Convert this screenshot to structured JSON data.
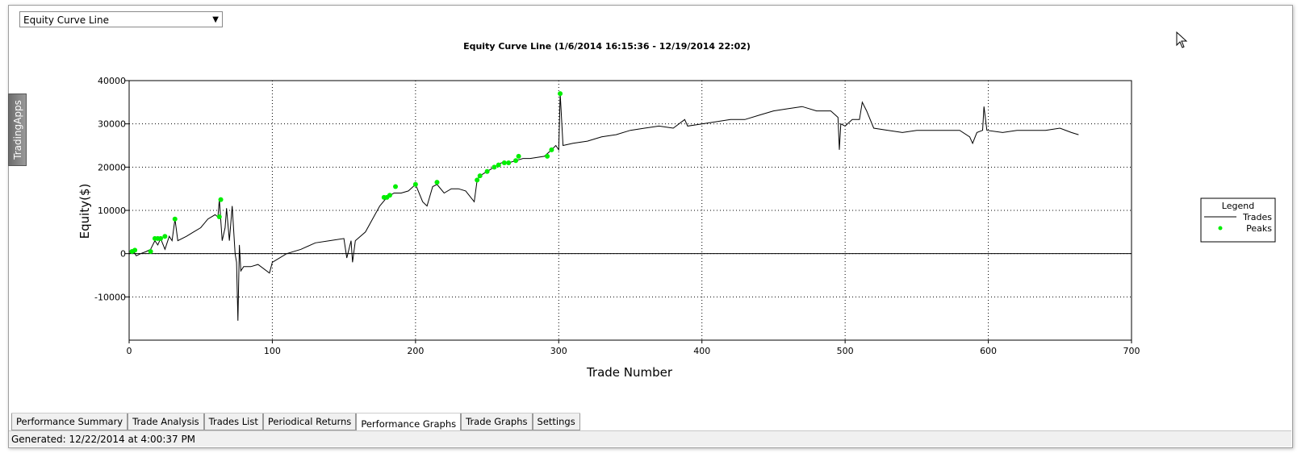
{
  "dropdown": {
    "selected": "Equity Curve Line"
  },
  "side_tab": {
    "label": "TradingApps"
  },
  "tabs": {
    "items": [
      "Performance Summary",
      "Trade Analysis",
      "Trades List",
      "Periodical Returns",
      "Performance Graphs",
      "Trade Graphs",
      "Settings"
    ],
    "active": 4
  },
  "status": {
    "text": "Generated: 12/22/2014 at 4:00:37 PM"
  },
  "chart_data": {
    "type": "line",
    "title": "Equity Curve Line (1/6/2014 16:15:36 - 12/19/2014 22:02)",
    "x_label": "Trade Number",
    "y_label": "Equity($)",
    "legend_title": "Legend",
    "legend_position": "right",
    "grid": true,
    "xlim": [
      0,
      700
    ],
    "xticks": [
      0,
      100,
      200,
      300,
      400,
      500,
      600,
      700
    ],
    "ylim": [
      -20000,
      40000
    ],
    "yticks": [
      -10000,
      0,
      10000,
      20000,
      30000,
      40000
    ],
    "series": [
      {
        "name": "Trades",
        "color": "#000000",
        "type": "line",
        "x": [
          0,
          3,
          5,
          8,
          12,
          15,
          18,
          20,
          22,
          25,
          28,
          30,
          32,
          34,
          40,
          45,
          50,
          55,
          60,
          62,
          63,
          65,
          67,
          68,
          70,
          72,
          74,
          75,
          76,
          77,
          78,
          80,
          85,
          90,
          98,
          100,
          110,
          120,
          130,
          140,
          150,
          152,
          155,
          156,
          158,
          165,
          170,
          175,
          180,
          185,
          190,
          195,
          200,
          205,
          208,
          212,
          215,
          220,
          225,
          230,
          235,
          241,
          243,
          245,
          250,
          255,
          260,
          265,
          270,
          275,
          280,
          290,
          295,
          298,
          300,
          301,
          303,
          310,
          320,
          330,
          340,
          350,
          360,
          370,
          380,
          388,
          390,
          400,
          410,
          420,
          430,
          440,
          450,
          460,
          470,
          480,
          490,
          495,
          496,
          497,
          500,
          505,
          510,
          512,
          515,
          520,
          530,
          540,
          550,
          560,
          570,
          580,
          587,
          589,
          592,
          596,
          597,
          599,
          610,
          620,
          630,
          640,
          650,
          658,
          663
        ],
        "values": [
          0,
          500,
          -500,
          0,
          500,
          1000,
          3000,
          2000,
          3500,
          1000,
          4000,
          3000,
          8000,
          3000,
          4000,
          5000,
          6000,
          8000,
          9000,
          8500,
          12500,
          3000,
          6000,
          10500,
          3000,
          11000,
          0,
          -2000,
          -15500,
          2000,
          -4000,
          -3000,
          -3000,
          -2500,
          -4500,
          -2000,
          0,
          1000,
          2500,
          3000,
          3500,
          -1000,
          3000,
          -2000,
          3000,
          5000,
          8000,
          11000,
          13000,
          14000,
          14000,
          14500,
          16000,
          12000,
          11000,
          15500,
          16000,
          14000,
          15000,
          15000,
          14500,
          12000,
          17000,
          18000,
          19000,
          20000,
          21000,
          21000,
          21500,
          22000,
          22000,
          22500,
          24000,
          25000,
          24000,
          37000,
          25000,
          25500,
          26000,
          27000,
          27500,
          28500,
          29000,
          29500,
          29000,
          31000,
          29500,
          30000,
          30500,
          31000,
          31000,
          32000,
          33000,
          33500,
          34000,
          33000,
          33000,
          31500,
          24000,
          30000,
          29500,
          31000,
          31000,
          35000,
          33000,
          29000,
          28500,
          28000,
          28500,
          28500,
          28500,
          28500,
          27000,
          25500,
          28000,
          28500,
          34000,
          28500,
          28000,
          28500,
          28500,
          28500,
          29000,
          28000,
          27500
        ]
      },
      {
        "name": "Peaks",
        "color": "#00ee00",
        "type": "scatter",
        "x": [
          2,
          4,
          15,
          18,
          20,
          22,
          25,
          32,
          63,
          64,
          178,
          180,
          182,
          186,
          200,
          215,
          243,
          245,
          250,
          255,
          258,
          262,
          265,
          270,
          272,
          292,
          295,
          301
        ],
        "values": [
          500,
          800,
          500,
          3500,
          3500,
          3500,
          4000,
          8000,
          8500,
          12500,
          13000,
          13000,
          13500,
          15500,
          16000,
          16500,
          17000,
          18000,
          19000,
          20000,
          20500,
          21000,
          21000,
          21500,
          22500,
          22500,
          24000,
          37000
        ]
      }
    ]
  }
}
